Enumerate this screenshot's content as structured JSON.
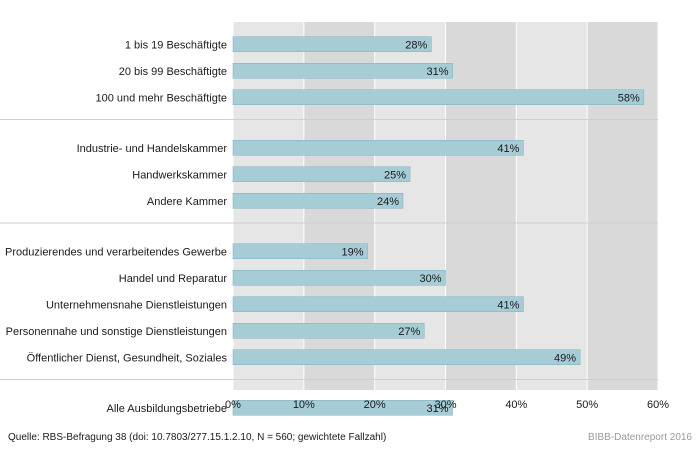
{
  "chart_data": {
    "type": "bar",
    "orientation": "horizontal",
    "groups": [
      {
        "categories": [
          "1 bis 19 Beschäftigte",
          "20 bis 99 Beschäftigte",
          "100 und mehr Beschäftigte"
        ],
        "values": [
          28,
          31,
          58
        ]
      },
      {
        "categories": [
          "Industrie- und Handelskammer",
          "Handwerkskammer",
          "Andere Kammer"
        ],
        "values": [
          41,
          25,
          24
        ]
      },
      {
        "categories": [
          "Produzierendes und verarbeitendes Gewerbe",
          "Handel und Reparatur",
          "Unternehmensnahe Dienstleistungen",
          "Personennahe und sonstige Dienstleistungen",
          "Öffentlicher Dienst, Gesundheit, Soziales"
        ],
        "values": [
          19,
          30,
          41,
          27,
          49
        ]
      },
      {
        "categories": [
          "Alle Ausbildungsbetriebe"
        ],
        "values": [
          31
        ]
      }
    ],
    "value_suffix": "%",
    "xlim": [
      0,
      60
    ],
    "ticks": [
      0,
      10,
      20,
      30,
      40,
      50,
      60
    ],
    "tick_labels": [
      "0%",
      "10%",
      "20%",
      "30%",
      "40%",
      "50%",
      "60%"
    ],
    "grid": true,
    "colors": {
      "bar": "#a6ccd6",
      "bar_stroke": "#7fb0be",
      "plot_bg": "#e6e6e6",
      "band_bg": "#d9d9d9",
      "separator": "#ffffff"
    }
  },
  "footer": {
    "source": "Quelle: RBS-Befragung 38 (doi: 10.7803/277.15.1.2.10, N = 560; gewichtete Fallzahl)",
    "brand": "BIBB-Datenreport 2016"
  }
}
